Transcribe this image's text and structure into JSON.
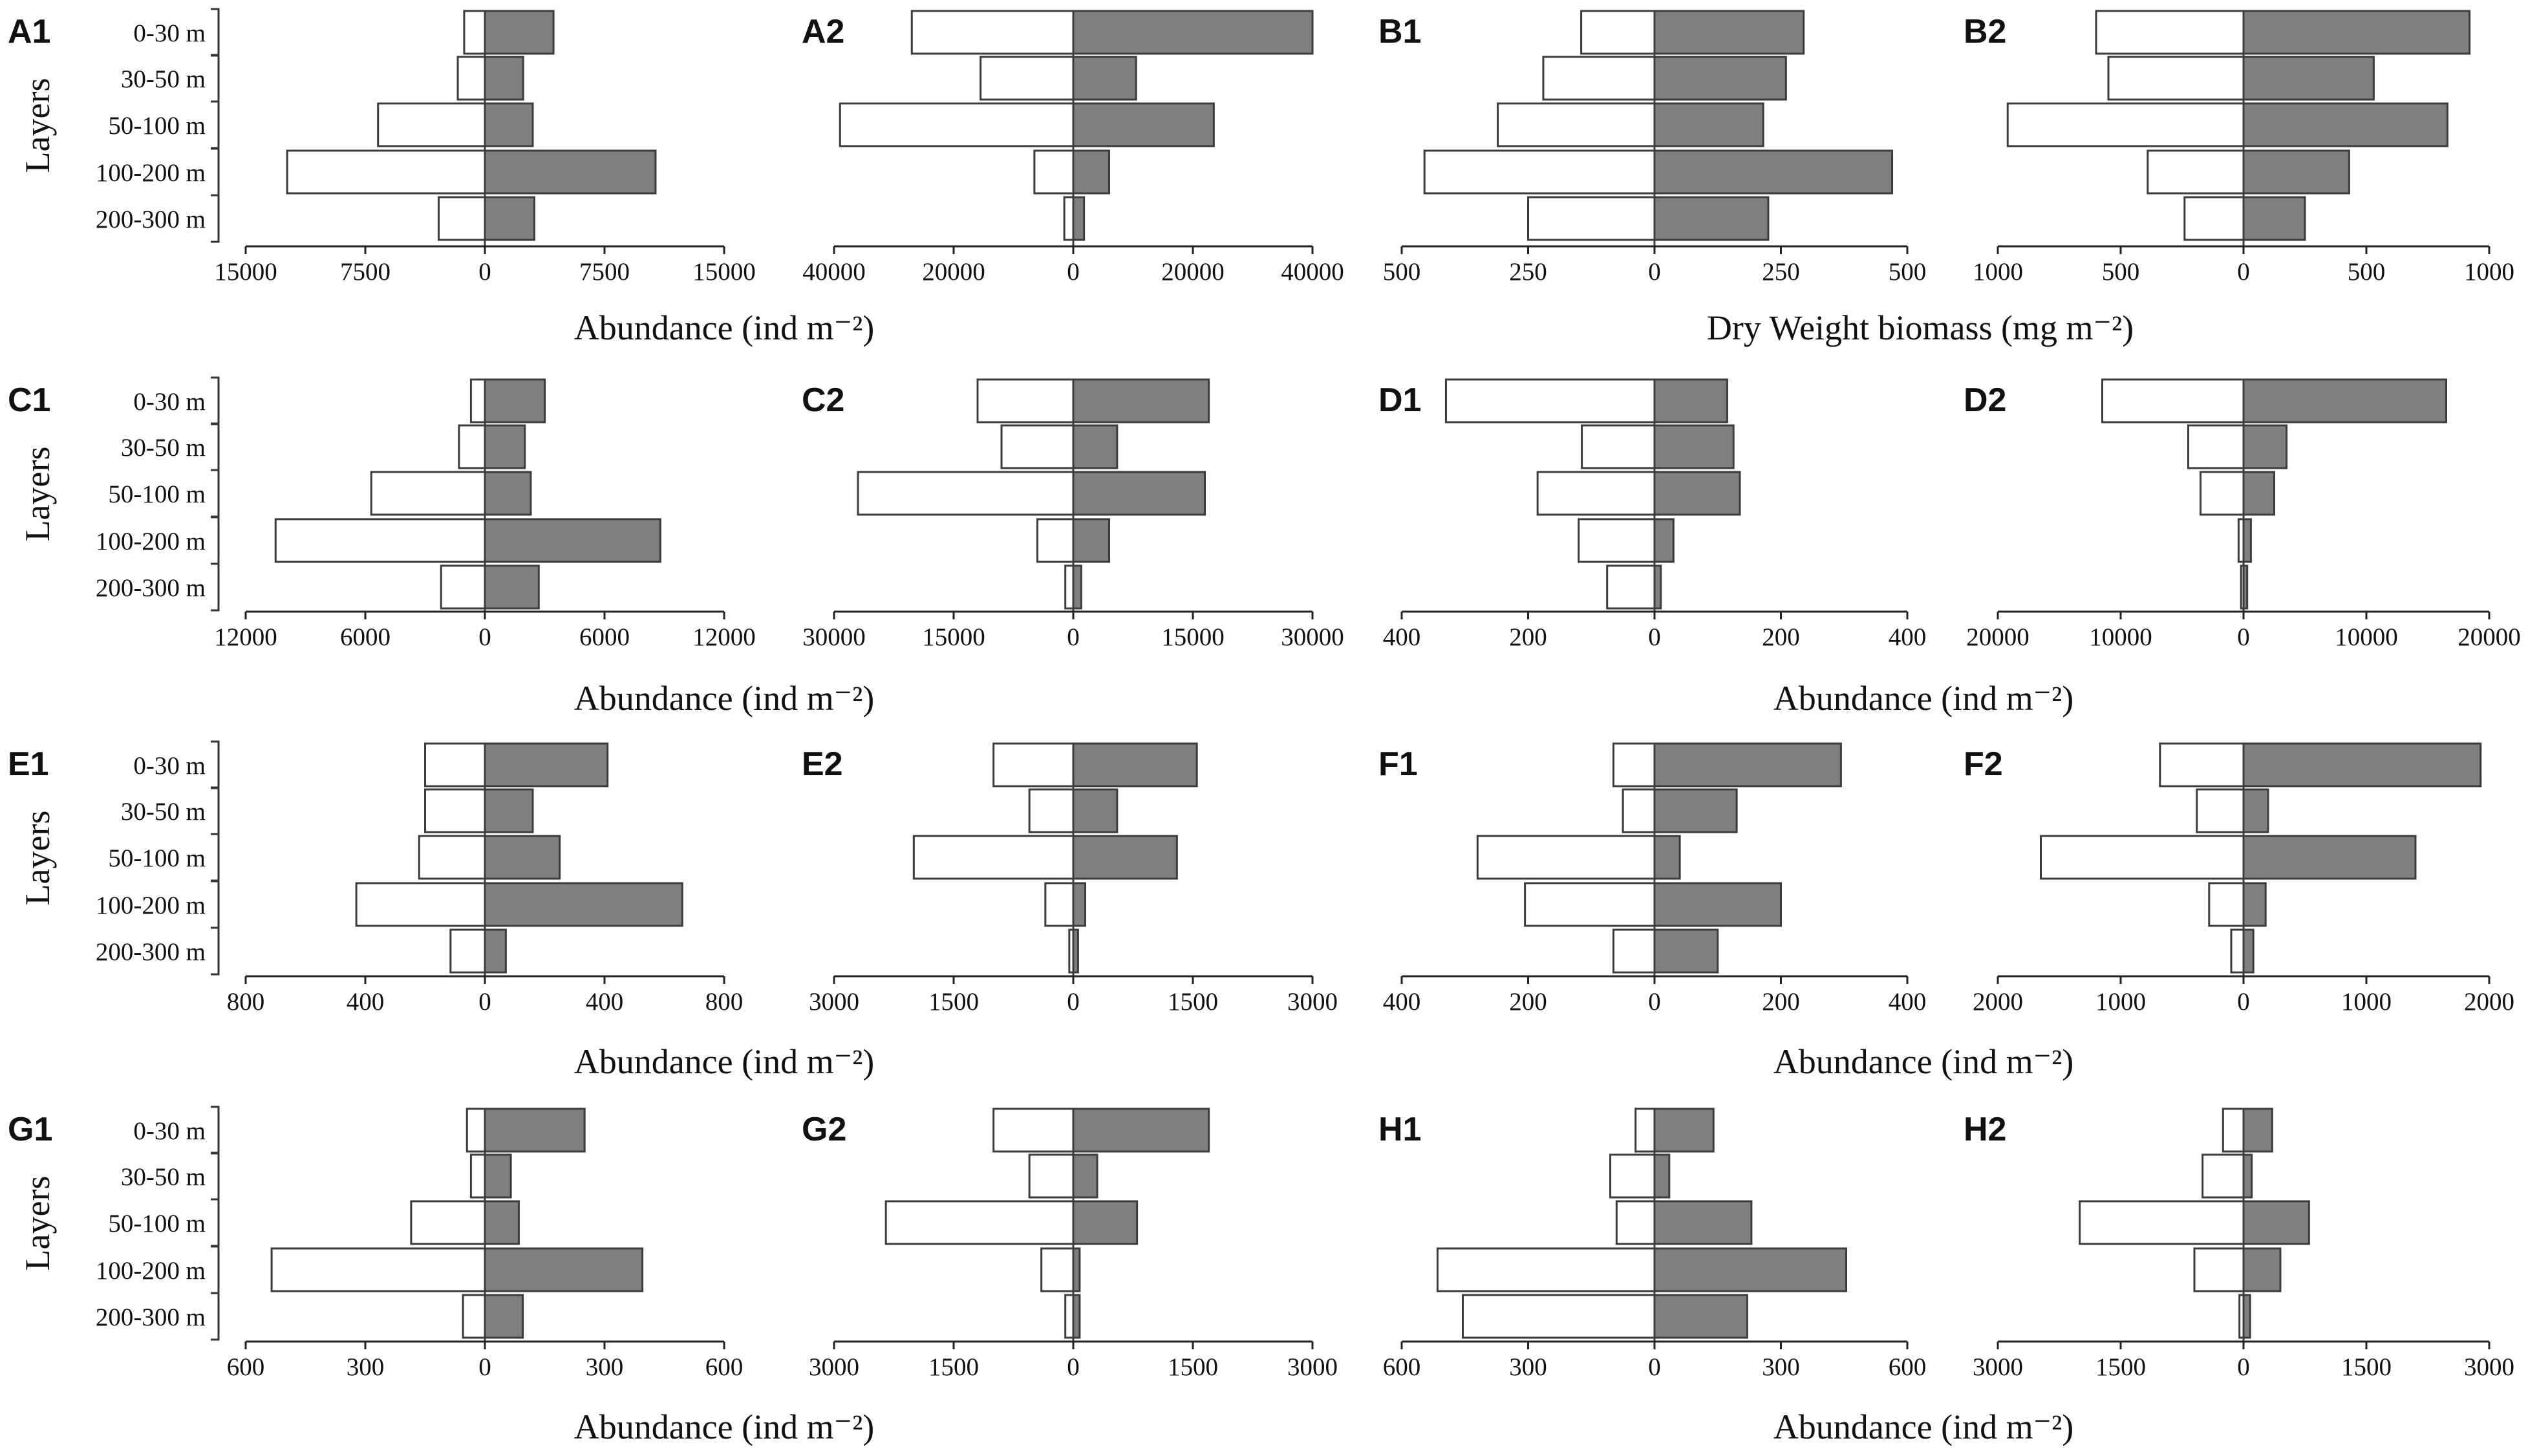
{
  "colors": {
    "night_bar": "#7f7f7f",
    "day_bar": "#ffffff",
    "stroke": "#3c3c3c"
  },
  "layers": [
    "0-30 m",
    "30-50 m",
    "50-100 m",
    "100-200 m",
    "200-300 m"
  ],
  "y_label": "Layers",
  "axis_titles": {
    "abundance": "Abundance (ind m⁻²)",
    "biomass": "Dry Weight biomass (mg m⁻²)"
  },
  "chart_data": [
    {
      "type": "bar",
      "panel": "A1",
      "unit": "abundance",
      "xlim": [
        -15000,
        15000
      ],
      "tick_labels": [
        "15000",
        "7500",
        "0",
        "7500",
        "15000"
      ],
      "series": [
        {
          "name": "left (open)",
          "values": [
            -1300,
            -1700,
            -6700,
            -12400,
            -2900
          ]
        },
        {
          "name": "right (filled)",
          "values": [
            4300,
            2400,
            3000,
            10700,
            3100
          ]
        }
      ]
    },
    {
      "type": "bar",
      "panel": "A2",
      "unit": "abundance",
      "xlim": [
        -40000,
        40000
      ],
      "tick_labels": [
        "40000",
        "20000",
        "0",
        "20000",
        "40000"
      ],
      "series": [
        {
          "name": "left (open)",
          "values": [
            -27000,
            -15500,
            -39000,
            -6500,
            -1500
          ]
        },
        {
          "name": "right (filled)",
          "values": [
            40000,
            10500,
            23500,
            6000,
            1800
          ]
        }
      ]
    },
    {
      "type": "bar",
      "panel": "B1",
      "unit": "biomass",
      "xlim": [
        -500,
        500
      ],
      "tick_labels": [
        "500",
        "250",
        "0",
        "250",
        "500"
      ],
      "series": [
        {
          "name": "left (open)",
          "values": [
            -145,
            -220,
            -310,
            -455,
            -250
          ]
        },
        {
          "name": "right (filled)",
          "values": [
            295,
            260,
            215,
            470,
            225
          ]
        }
      ]
    },
    {
      "type": "bar",
      "panel": "B2",
      "unit": "biomass",
      "xlim": [
        -1000,
        1000
      ],
      "tick_labels": [
        "1000",
        "500",
        "0",
        "500",
        "1000"
      ],
      "series": [
        {
          "name": "left (open)",
          "values": [
            -600,
            -550,
            -960,
            -390,
            -240
          ]
        },
        {
          "name": "right (filled)",
          "values": [
            920,
            530,
            830,
            430,
            250
          ]
        }
      ]
    },
    {
      "type": "bar",
      "panel": "C1",
      "unit": "abundance",
      "xlim": [
        -12000,
        12000
      ],
      "tick_labels": [
        "12000",
        "6000",
        "0",
        "6000",
        "12000"
      ],
      "series": [
        {
          "name": "left (open)",
          "values": [
            -700,
            -1300,
            -5700,
            -10500,
            -2200
          ]
        },
        {
          "name": "right (filled)",
          "values": [
            3000,
            2000,
            2300,
            8800,
            2700
          ]
        }
      ]
    },
    {
      "type": "bar",
      "panel": "C2",
      "unit": "abundance",
      "xlim": [
        -30000,
        30000
      ],
      "tick_labels": [
        "30000",
        "15000",
        "0",
        "15000",
        "30000"
      ],
      "series": [
        {
          "name": "left (open)",
          "values": [
            -12000,
            -9000,
            -27000,
            -4500,
            -1000
          ]
        },
        {
          "name": "right (filled)",
          "values": [
            17000,
            5500,
            16500,
            4500,
            1000
          ]
        }
      ]
    },
    {
      "type": "bar",
      "panel": "D1",
      "unit": "abundance",
      "xlim": [
        -400,
        400
      ],
      "tick_labels": [
        "400",
        "200",
        "0",
        "200",
        "400"
      ],
      "series": [
        {
          "name": "left (open)",
          "values": [
            -330,
            -115,
            -185,
            -120,
            -75
          ]
        },
        {
          "name": "right (filled)",
          "values": [
            115,
            125,
            135,
            30,
            10
          ]
        }
      ]
    },
    {
      "type": "bar",
      "panel": "D2",
      "unit": "abundance",
      "xlim": [
        -20000,
        20000
      ],
      "tick_labels": [
        "20000",
        "10000",
        "0",
        "10000",
        "20000"
      ],
      "series": [
        {
          "name": "left (open)",
          "values": [
            -11500,
            -4500,
            -3500,
            -400,
            -200
          ]
        },
        {
          "name": "right (filled)",
          "values": [
            16500,
            3500,
            2500,
            600,
            300
          ]
        }
      ]
    },
    {
      "type": "bar",
      "panel": "E1",
      "unit": "abundance",
      "xlim": [
        -800,
        800
      ],
      "tick_labels": [
        "800",
        "400",
        "0",
        "400",
        "800"
      ],
      "series": [
        {
          "name": "left (open)",
          "values": [
            -200,
            -200,
            -220,
            -430,
            -115
          ]
        },
        {
          "name": "right (filled)",
          "values": [
            410,
            160,
            250,
            660,
            70
          ]
        }
      ]
    },
    {
      "type": "bar",
      "panel": "E2",
      "unit": "abundance",
      "xlim": [
        -3000,
        3000
      ],
      "tick_labels": [
        "3000",
        "1500",
        "0",
        "1500",
        "3000"
      ],
      "series": [
        {
          "name": "left (open)",
          "values": [
            -1000,
            -550,
            -2000,
            -350,
            -50
          ]
        },
        {
          "name": "right (filled)",
          "values": [
            1550,
            550,
            1300,
            150,
            60
          ]
        }
      ]
    },
    {
      "type": "bar",
      "panel": "F1",
      "unit": "abundance",
      "xlim": [
        -400,
        400
      ],
      "tick_labels": [
        "400",
        "200",
        "0",
        "200",
        "400"
      ],
      "series": [
        {
          "name": "left (open)",
          "values": [
            -65,
            -50,
            -280,
            -205,
            -65
          ]
        },
        {
          "name": "right (filled)",
          "values": [
            295,
            130,
            40,
            200,
            100
          ]
        }
      ]
    },
    {
      "type": "bar",
      "panel": "F2",
      "unit": "abundance",
      "xlim": [
        -2000,
        2000
      ],
      "tick_labels": [
        "2000",
        "1000",
        "0",
        "1000",
        "2000"
      ],
      "series": [
        {
          "name": "left (open)",
          "values": [
            -680,
            -380,
            -1650,
            -280,
            -100
          ]
        },
        {
          "name": "right (filled)",
          "values": [
            1930,
            200,
            1400,
            180,
            80
          ]
        }
      ]
    },
    {
      "type": "bar",
      "panel": "G1",
      "unit": "abundance",
      "xlim": [
        -600,
        600
      ],
      "tick_labels": [
        "600",
        "300",
        "0",
        "300",
        "600"
      ],
      "series": [
        {
          "name": "left (open)",
          "values": [
            -45,
            -35,
            -185,
            -535,
            -55
          ]
        },
        {
          "name": "right (filled)",
          "values": [
            250,
            65,
            85,
            395,
            95
          ]
        }
      ]
    },
    {
      "type": "bar",
      "panel": "G2",
      "unit": "abundance",
      "xlim": [
        -3000,
        3000
      ],
      "tick_labels": [
        "3000",
        "1500",
        "0",
        "1500",
        "3000"
      ],
      "series": [
        {
          "name": "left (open)",
          "values": [
            -1000,
            -550,
            -2350,
            -400,
            -100
          ]
        },
        {
          "name": "right (filled)",
          "values": [
            1700,
            300,
            800,
            80,
            80
          ]
        }
      ]
    },
    {
      "type": "bar",
      "panel": "H1",
      "unit": "abundance",
      "xlim": [
        -600,
        600
      ],
      "tick_labels": [
        "600",
        "300",
        "0",
        "300",
        "600"
      ],
      "series": [
        {
          "name": "left (open)",
          "values": [
            -45,
            -105,
            -90,
            -515,
            -455
          ]
        },
        {
          "name": "right (filled)",
          "values": [
            140,
            35,
            230,
            455,
            220
          ]
        }
      ]
    },
    {
      "type": "bar",
      "panel": "H2",
      "unit": "abundance",
      "xlim": [
        -3000,
        3000
      ],
      "tick_labels": [
        "3000",
        "1500",
        "0",
        "1500",
        "3000"
      ],
      "series": [
        {
          "name": "left (open)",
          "values": [
            -250,
            -500,
            -2000,
            -600,
            -50
          ]
        },
        {
          "name": "right (filled)",
          "values": [
            350,
            100,
            800,
            450,
            80
          ]
        }
      ]
    }
  ]
}
